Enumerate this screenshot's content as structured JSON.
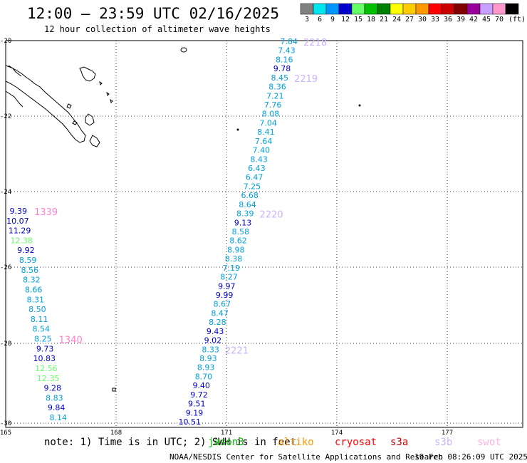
{
  "header": {
    "title": "12:00 — 23:59 UTC 02/16/2025",
    "subtitle": "12 hour collection of altimeter wave heights"
  },
  "legend": {
    "unit": "(ft)",
    "items": [
      {
        "label": "3",
        "color": "#808080"
      },
      {
        "label": "6",
        "color": "#00e5ee"
      },
      {
        "label": "9",
        "color": "#0096ff"
      },
      {
        "label": "12",
        "color": "#0000cd"
      },
      {
        "label": "15",
        "color": "#66ff66"
      },
      {
        "label": "18",
        "color": "#00c000"
      },
      {
        "label": "21",
        "color": "#008000"
      },
      {
        "label": "24",
        "color": "#ffff00"
      },
      {
        "label": "27",
        "color": "#ffcc00"
      },
      {
        "label": "30",
        "color": "#ff9900"
      },
      {
        "label": "33",
        "color": "#ff0000"
      },
      {
        "label": "36",
        "color": "#cc0000"
      },
      {
        "label": "39",
        "color": "#800000"
      },
      {
        "label": "42",
        "color": "#990099"
      },
      {
        "label": "45",
        "color": "#c8a0ff"
      },
      {
        "label": "70",
        "color": "#ff99cc"
      },
      {
        "label": "",
        "color": "#000000"
      }
    ]
  },
  "axes": {
    "lat_labels": [
      "-20",
      "-22",
      "-24",
      "-26",
      "-28",
      "-30"
    ],
    "lon_labels": [
      "165",
      "168",
      "171",
      "174",
      "177"
    ]
  },
  "tracks": [
    {
      "time_labels": [
        {
          "text": "2218",
          "color": "#c8b4ff"
        },
        {
          "text": "2219",
          "color": "#c8b4ff"
        },
        {
          "text": "2220",
          "color": "#c8b4ff"
        },
        {
          "text": "2221",
          "color": "#c8b4ff"
        }
      ],
      "readings": [
        {
          "v": "7.84",
          "color": "#00a0dc"
        },
        {
          "v": "7.43",
          "color": "#00a0dc"
        },
        {
          "v": "8.16",
          "color": "#00a0dc"
        },
        {
          "v": "9.78",
          "color": "#0000cd"
        },
        {
          "v": "8.45",
          "color": "#00a0dc"
        },
        {
          "v": "8.36",
          "color": "#00a0dc"
        },
        {
          "v": "7.21",
          "color": "#00a0dc"
        },
        {
          "v": "7.76",
          "color": "#00a0dc"
        },
        {
          "v": "8.08",
          "color": "#00a0dc"
        },
        {
          "v": "7.04",
          "color": "#00a0dc"
        },
        {
          "v": "8.41",
          "color": "#00a0dc"
        },
        {
          "v": "7.64",
          "color": "#00a0dc"
        },
        {
          "v": "7.40",
          "color": "#00a0dc"
        },
        {
          "v": "8.43",
          "color": "#00a0dc"
        },
        {
          "v": "6.43",
          "color": "#00a0dc"
        },
        {
          "v": "6.47",
          "color": "#00a0dc"
        },
        {
          "v": "7.25",
          "color": "#00a0dc"
        },
        {
          "v": "6.68",
          "color": "#00a0dc"
        },
        {
          "v": "8.64",
          "color": "#00a0dc"
        },
        {
          "v": "8.39",
          "color": "#00a0dc"
        },
        {
          "v": "9.13",
          "color": "#0000cd"
        },
        {
          "v": "8.58",
          "color": "#00a0dc"
        },
        {
          "v": "8.62",
          "color": "#00a0dc"
        },
        {
          "v": "8.98",
          "color": "#00a0dc"
        },
        {
          "v": "8.38",
          "color": "#00a0dc"
        },
        {
          "v": "7.19",
          "color": "#00a0dc"
        },
        {
          "v": "8.27",
          "color": "#00a0dc"
        },
        {
          "v": "9.97",
          "color": "#0000cd"
        },
        {
          "v": "9.99",
          "color": "#0000cd"
        },
        {
          "v": "8.67",
          "color": "#00a0dc"
        },
        {
          "v": "8.47",
          "color": "#00a0dc"
        },
        {
          "v": "8.28",
          "color": "#00a0dc"
        },
        {
          "v": "9.43",
          "color": "#0000cd"
        },
        {
          "v": "9.02",
          "color": "#0000cd"
        },
        {
          "v": "8.33",
          "color": "#00a0dc"
        },
        {
          "v": "8.93",
          "color": "#00a0dc"
        },
        {
          "v": "8.93",
          "color": "#00a0dc"
        },
        {
          "v": "8.70",
          "color": "#00a0dc"
        },
        {
          "v": "9.40",
          "color": "#0000cd"
        },
        {
          "v": "9.72",
          "color": "#0000cd"
        },
        {
          "v": "9.51",
          "color": "#0000cd"
        },
        {
          "v": "9.19",
          "color": "#0000cd"
        },
        {
          "v": "10.51",
          "color": "#0000cd"
        }
      ]
    },
    {
      "time_labels": [
        {
          "text": "1339",
          "color": "#ff80d0"
        },
        {
          "text": "1340",
          "color": "#ff80d0"
        }
      ],
      "readings": [
        {
          "v": "9.39",
          "color": "#0000cd"
        },
        {
          "v": "10.07",
          "color": "#0000cd"
        },
        {
          "v": "11.29",
          "color": "#0000cd"
        },
        {
          "v": "12.38",
          "color": "#66ff66"
        },
        {
          "v": "9.92",
          "color": "#0000cd"
        },
        {
          "v": "8.59",
          "color": "#00a0dc"
        },
        {
          "v": "8.56",
          "color": "#00a0dc"
        },
        {
          "v": "8.32",
          "color": "#00a0dc"
        },
        {
          "v": "8.66",
          "color": "#00a0dc"
        },
        {
          "v": "8.31",
          "color": "#00a0dc"
        },
        {
          "v": "8.50",
          "color": "#00a0dc"
        },
        {
          "v": "8.11",
          "color": "#00a0dc"
        },
        {
          "v": "8.54",
          "color": "#00a0dc"
        },
        {
          "v": "8.25",
          "color": "#00a0dc"
        },
        {
          "v": "9.73",
          "color": "#0000cd"
        },
        {
          "v": "10.83",
          "color": "#0000cd"
        },
        {
          "v": "12.56",
          "color": "#66ff66"
        },
        {
          "v": "12.35",
          "color": "#66ff66"
        },
        {
          "v": "9.28",
          "color": "#0000cd"
        },
        {
          "v": "8.83",
          "color": "#00a0dc"
        },
        {
          "v": "9.84",
          "color": "#0000cd"
        },
        {
          "v": "8.14",
          "color": "#00a0dc"
        }
      ]
    }
  ],
  "footer": {
    "note": "note: 1) Time is in UTC; 2) SWH is in feet",
    "satellites": [
      {
        "name": "jason3",
        "color": "#00c000"
      },
      {
        "name": "altiko",
        "color": "#ff9900"
      },
      {
        "name": "cryosat",
        "color": "#ff0000"
      },
      {
        "name": "s3a",
        "color": "#cc0000"
      },
      {
        "name": "s3b",
        "color": "#c8b4ff"
      },
      {
        "name": "swot",
        "color": "#ffb0e0"
      }
    ],
    "credit": "NOAA/NESDIS Center for Satellite Applications and Research",
    "timestamp": "19 Feb 08:26:09 UTC 2025"
  }
}
